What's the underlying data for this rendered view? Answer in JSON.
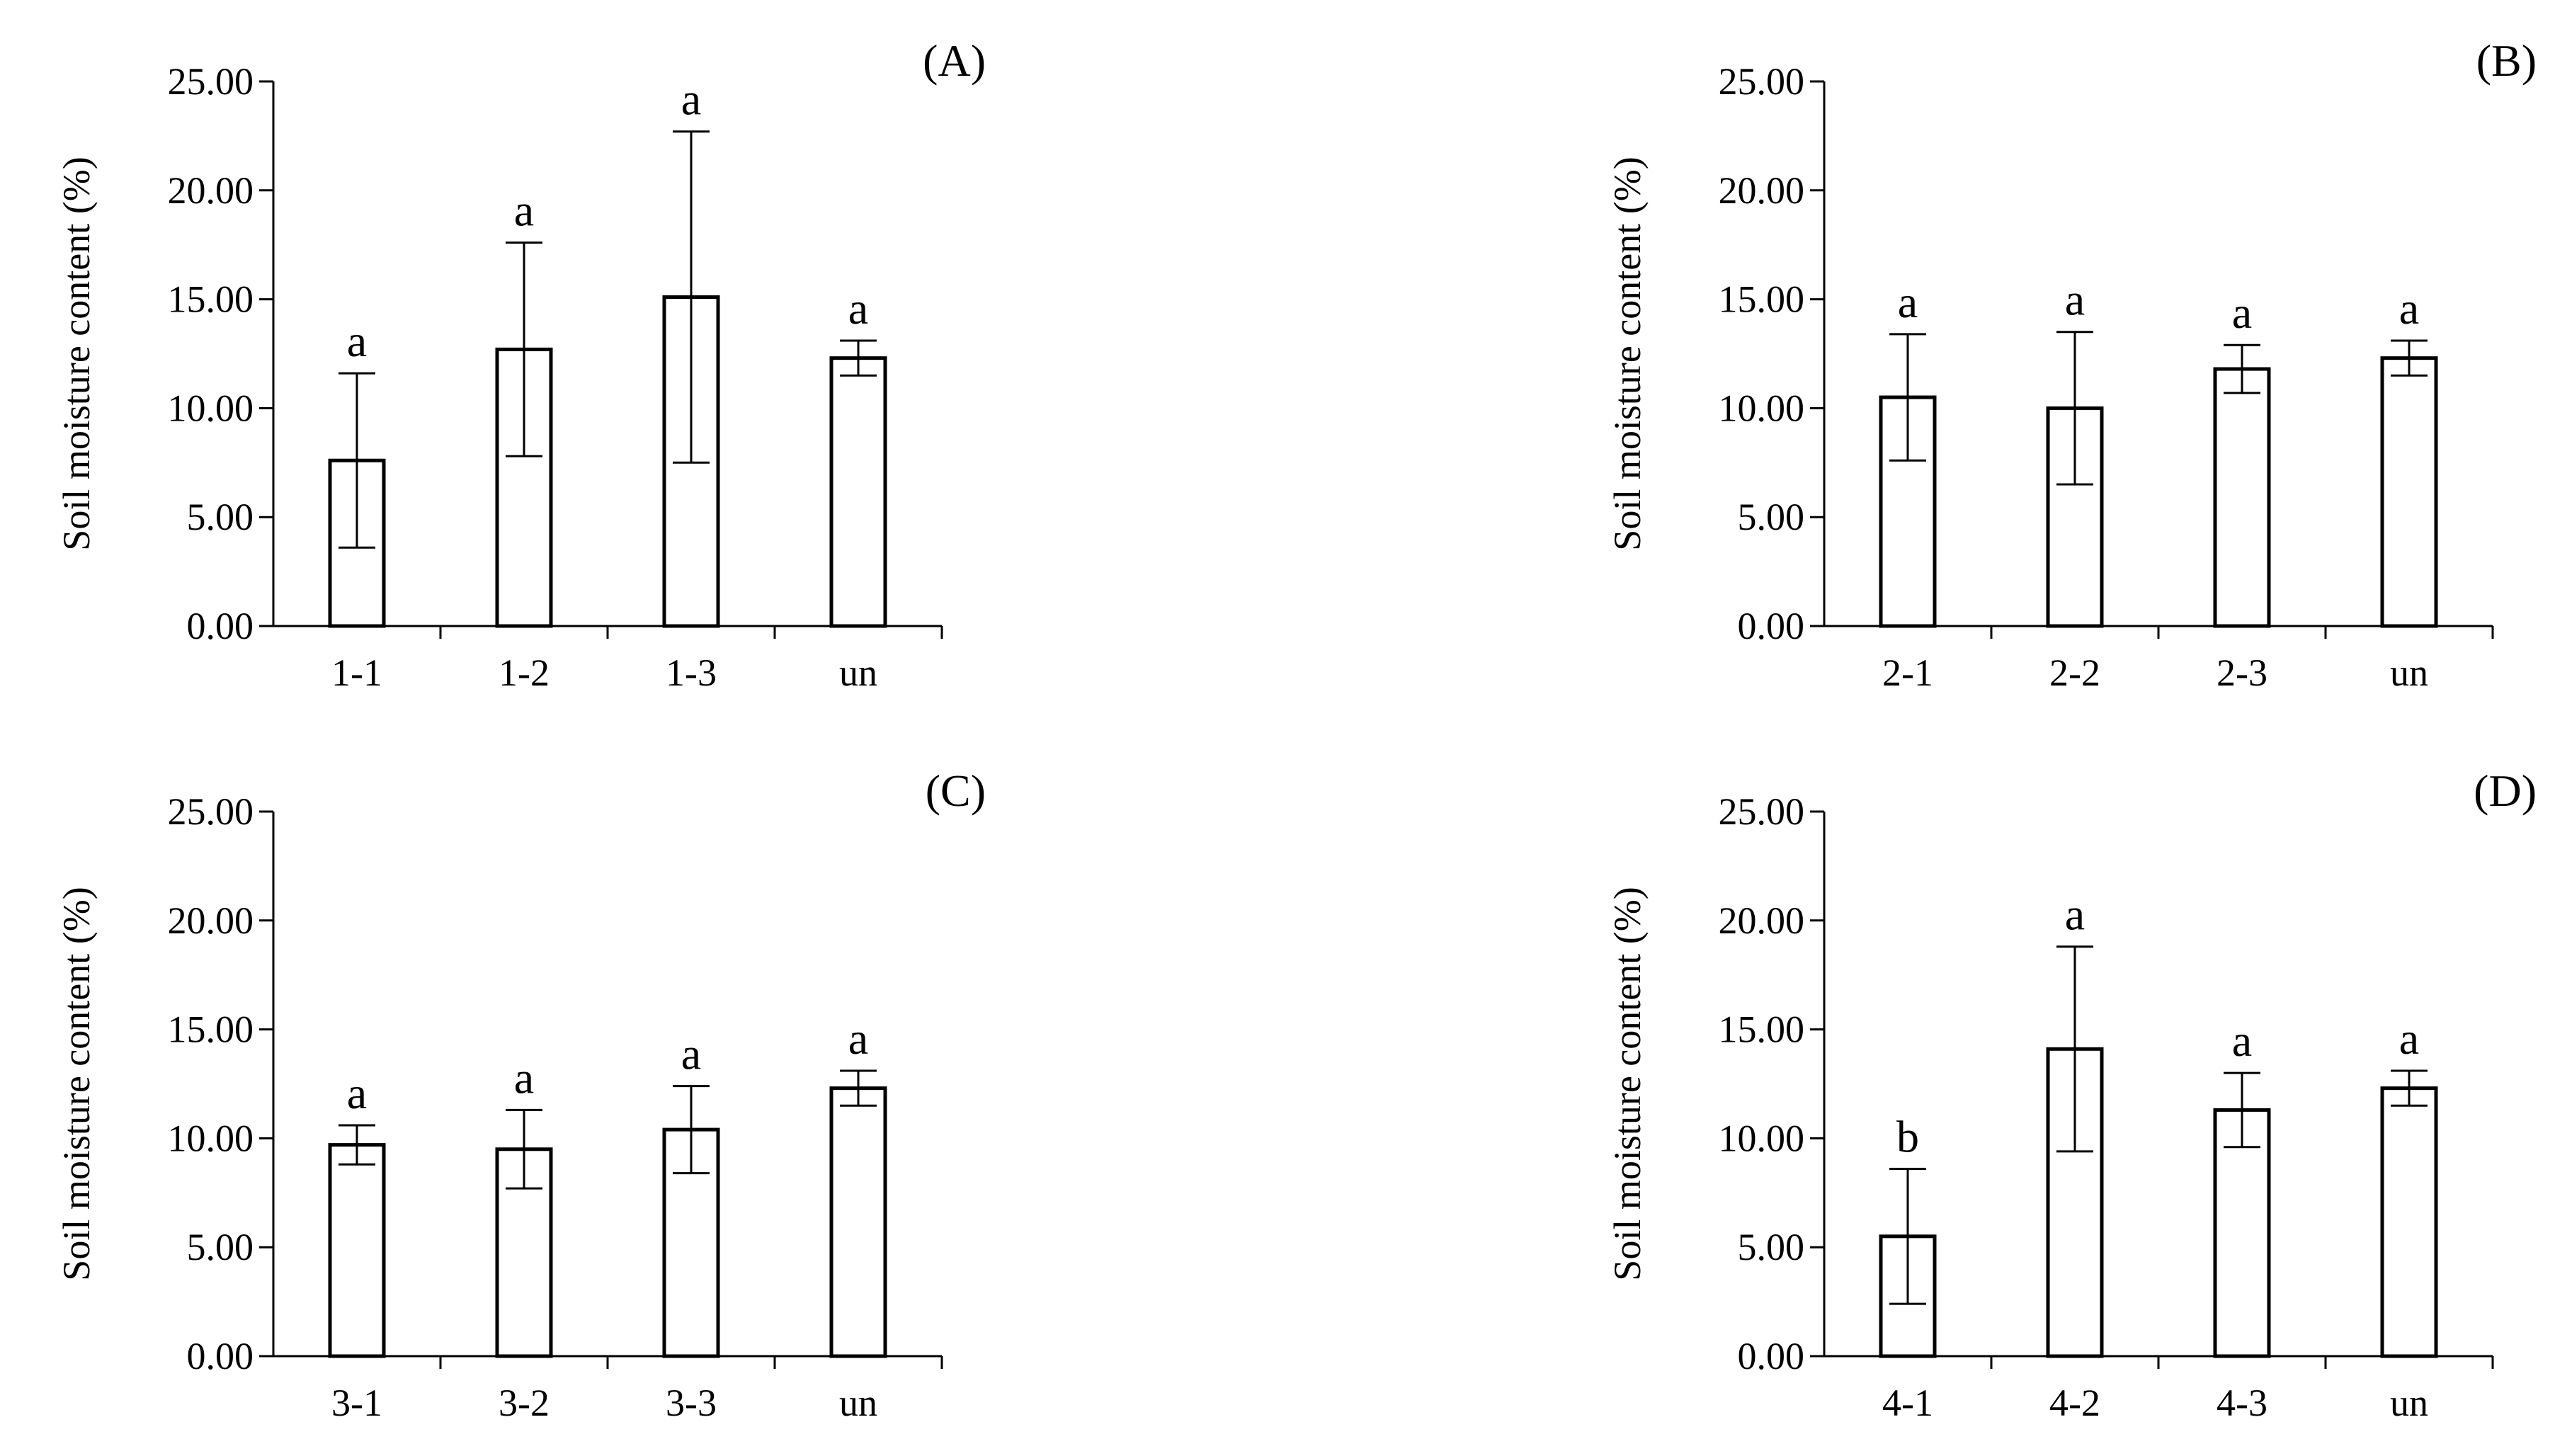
{
  "chart_data": [
    {
      "type": "bar",
      "panel_label": "(A)",
      "categories": [
        "1-1",
        "1-2",
        "1-3",
        "un"
      ],
      "values": [
        7.6,
        12.7,
        15.1,
        12.3
      ],
      "errors": [
        4.0,
        4.9,
        7.6,
        0.8
      ],
      "significance": [
        "a",
        "a",
        "a",
        "a"
      ],
      "ylabel": "Soil moisture content (%)",
      "ylim": [
        0,
        25
      ],
      "yticks": [
        "0.00",
        "5.00",
        "10.00",
        "15.00",
        "20.00",
        "25.00"
      ],
      "grid": false,
      "legend": "none"
    },
    {
      "type": "bar",
      "panel_label": "(B)",
      "categories": [
        "2-1",
        "2-2",
        "2-3",
        "un"
      ],
      "values": [
        10.5,
        10.0,
        11.8,
        12.3
      ],
      "errors": [
        2.9,
        3.5,
        1.1,
        0.8
      ],
      "significance": [
        "a",
        "a",
        "a",
        "a"
      ],
      "ylabel": "Soil moisture content (%)",
      "ylim": [
        0,
        25
      ],
      "yticks": [
        "0.00",
        "5.00",
        "10.00",
        "15.00",
        "20.00",
        "25.00"
      ],
      "grid": false,
      "legend": "none"
    },
    {
      "type": "bar",
      "panel_label": "(C)",
      "categories": [
        "3-1",
        "3-2",
        "3-3",
        "un"
      ],
      "values": [
        9.7,
        9.5,
        10.4,
        12.3
      ],
      "errors": [
        0.9,
        1.8,
        2.0,
        0.8
      ],
      "significance": [
        "a",
        "a",
        "a",
        "a"
      ],
      "ylabel": "Soil moisture content (%)",
      "ylim": [
        0,
        25
      ],
      "yticks": [
        "0.00",
        "5.00",
        "10.00",
        "15.00",
        "20.00",
        "25.00"
      ],
      "grid": false,
      "legend": "none"
    },
    {
      "type": "bar",
      "panel_label": "(D)",
      "categories": [
        "4-1",
        "4-2",
        "4-3",
        "un"
      ],
      "values": [
        5.5,
        14.1,
        11.3,
        12.3
      ],
      "errors": [
        3.1,
        4.7,
        1.7,
        0.8
      ],
      "significance": [
        "b",
        "a",
        "a",
        "a"
      ],
      "ylabel": "Soil moisture content (%)",
      "ylim": [
        0,
        25
      ],
      "yticks": [
        "0.00",
        "5.00",
        "10.00",
        "15.00",
        "20.00",
        "25.00"
      ],
      "grid": false,
      "legend": "none"
    }
  ]
}
